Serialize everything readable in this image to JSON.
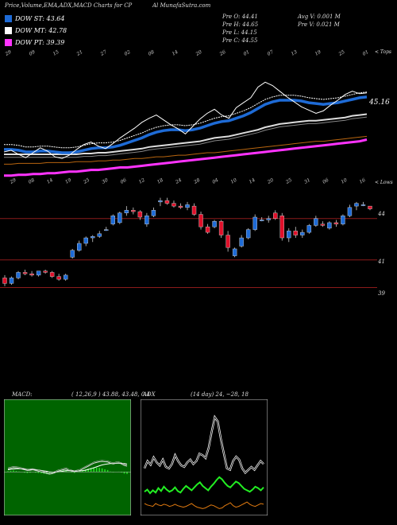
{
  "header": {
    "title": "Price,Volume,EMA,ADX,MACD Charts for CP",
    "site": "Al MunafaSutra.com"
  },
  "legend": [
    {
      "label": "DOW ST: 43.64",
      "color": "#1e6bd6"
    },
    {
      "label": "DOW MT: 42.78",
      "color": "#ffffff"
    },
    {
      "label": "DOW PT: 39.39",
      "color": "#ff33ff"
    }
  ],
  "stats": {
    "open": "Pre  O: 44.41",
    "high": "Pre  H: 44.65",
    "low": "Pre  L: 44.15",
    "close": "Pre  C: 44.55",
    "avg_vol": "Avg V: 0.001 M",
    "pre_vol": "Pre  V: 0.021 M"
  },
  "top_panel": {
    "right_label": "< Tops",
    "last_value_label": "45.16",
    "date_labels": [
      "29",
      "09",
      "15",
      "21",
      "27",
      "02",
      "08",
      "14",
      "20",
      "26",
      "01",
      "07",
      "13",
      "19",
      "25",
      "01"
    ],
    "bottom_labels": [
      "29",
      "08",
      "14",
      "19",
      "25",
      "30",
      "06",
      "12",
      "18",
      "24",
      "28",
      "04",
      "10",
      "14",
      "20",
      "25",
      "31",
      "06",
      "10",
      "16"
    ]
  },
  "candle_panel": {
    "right_label": "< Lows",
    "price_levels": [
      {
        "label": "44",
        "value": 44.0
      },
      {
        "label": "41",
        "value": 41.0
      },
      {
        "label": "39",
        "value": 39.0
      }
    ]
  },
  "macd": {
    "label": "MACD:",
    "params": "( 12,26,9 ) 43.88, 43.48, 0.4"
  },
  "adx": {
    "label": "ADX",
    "params": "(14 day) 24, ~28, 18"
  },
  "chart_data": {
    "type": "line",
    "price_ema": {
      "price": [
        37.9,
        38.1,
        37.6,
        37.2,
        37.8,
        38.4,
        38.0,
        37.3,
        37.1,
        37.5,
        38.2,
        38.8,
        39.1,
        38.6,
        38.3,
        38.9,
        39.6,
        40.2,
        40.8,
        41.5,
        42.0,
        42.4,
        41.8,
        41.2,
        40.7,
        40.1,
        41.0,
        41.9,
        42.6,
        43.1,
        42.4,
        42.0,
        43.3,
        43.9,
        44.5,
        45.8,
        46.4,
        46.0,
        45.3,
        44.6,
        44.0,
        43.4,
        43.0,
        42.6,
        42.9,
        43.6,
        44.2,
        44.9,
        45.3,
        45.0,
        45.1
      ],
      "ema_short": [
        38.2,
        38.2,
        38.1,
        37.9,
        37.9,
        38.0,
        38.0,
        37.9,
        37.8,
        37.8,
        37.9,
        38.1,
        38.3,
        38.4,
        38.4,
        38.5,
        38.7,
        39.0,
        39.3,
        39.6,
        40.0,
        40.3,
        40.5,
        40.6,
        40.6,
        40.5,
        40.6,
        40.8,
        41.1,
        41.4,
        41.6,
        41.7,
        42.0,
        42.3,
        42.7,
        43.2,
        43.7,
        44.0,
        44.2,
        44.2,
        44.2,
        44.1,
        43.9,
        43.8,
        43.7,
        43.8,
        43.9,
        44.1,
        44.3,
        44.5,
        44.6
      ],
      "ema_mid": [
        37.6,
        37.6,
        37.6,
        37.6,
        37.6,
        37.6,
        37.6,
        37.6,
        37.6,
        37.6,
        37.6,
        37.7,
        37.7,
        37.8,
        37.8,
        37.9,
        38.0,
        38.1,
        38.2,
        38.3,
        38.5,
        38.6,
        38.7,
        38.8,
        38.9,
        39.0,
        39.1,
        39.2,
        39.4,
        39.6,
        39.7,
        39.8,
        40.0,
        40.2,
        40.4,
        40.6,
        40.9,
        41.1,
        41.3,
        41.4,
        41.5,
        41.6,
        41.7,
        41.7,
        41.8,
        41.9,
        42.0,
        42.1,
        42.3,
        42.4,
        42.5
      ],
      "ema_long": [
        36.4,
        36.4,
        36.5,
        36.5,
        36.5,
        36.5,
        36.6,
        36.6,
        36.6,
        36.6,
        36.7,
        36.7,
        36.7,
        36.8,
        36.8,
        36.9,
        36.9,
        37.0,
        37.1,
        37.1,
        37.2,
        37.3,
        37.3,
        37.4,
        37.5,
        37.5,
        37.6,
        37.7,
        37.8,
        37.8,
        37.9,
        38.0,
        38.1,
        38.2,
        38.3,
        38.4,
        38.5,
        38.6,
        38.7,
        38.8,
        38.9,
        39.0,
        39.1,
        39.2,
        39.2,
        39.3,
        39.4,
        39.5,
        39.6,
        39.7,
        39.8
      ],
      "ema_pt": [
        35.0,
        35.0,
        35.1,
        35.1,
        35.2,
        35.2,
        35.3,
        35.3,
        35.4,
        35.5,
        35.5,
        35.6,
        35.7,
        35.7,
        35.8,
        35.9,
        36.0,
        36.0,
        36.1,
        36.2,
        36.3,
        36.4,
        36.5,
        36.6,
        36.7,
        36.8,
        36.9,
        37.0,
        37.1,
        37.2,
        37.3,
        37.4,
        37.5,
        37.6,
        37.7,
        37.8,
        37.9,
        38.0,
        38.1,
        38.2,
        38.3,
        38.4,
        38.5,
        38.6,
        38.7,
        38.8,
        38.9,
        39.0,
        39.1,
        39.2,
        39.4
      ]
    },
    "candles": [
      {
        "o": 39.7,
        "h": 39.9,
        "l": 39.1,
        "c": 39.3
      },
      {
        "o": 39.3,
        "h": 39.8,
        "l": 39.2,
        "c": 39.7
      },
      {
        "o": 39.7,
        "h": 40.2,
        "l": 39.6,
        "c": 40.1
      },
      {
        "o": 40.1,
        "h": 40.3,
        "l": 39.9,
        "c": 40.0
      },
      {
        "o": 40.0,
        "h": 40.2,
        "l": 39.8,
        "c": 39.9
      },
      {
        "o": 39.9,
        "h": 40.2,
        "l": 39.8,
        "c": 40.2
      },
      {
        "o": 40.2,
        "h": 40.3,
        "l": 40.0,
        "c": 40.1
      },
      {
        "o": 40.1,
        "h": 40.2,
        "l": 39.7,
        "c": 39.8
      },
      {
        "o": 39.8,
        "h": 40.0,
        "l": 39.5,
        "c": 39.6
      },
      {
        "o": 39.6,
        "h": 40.0,
        "l": 39.5,
        "c": 39.9
      },
      {
        "o": 41.2,
        "h": 41.8,
        "l": 41.1,
        "c": 41.7
      },
      {
        "o": 41.7,
        "h": 42.4,
        "l": 41.6,
        "c": 42.2
      },
      {
        "o": 42.2,
        "h": 42.7,
        "l": 42.0,
        "c": 42.6
      },
      {
        "o": 42.6,
        "h": 42.8,
        "l": 42.3,
        "c": 42.7
      },
      {
        "o": 42.7,
        "h": 43.1,
        "l": 42.6,
        "c": 42.9
      },
      {
        "o": 43.2,
        "h": 43.4,
        "l": 43.1,
        "c": 43.2
      },
      {
        "o": 43.6,
        "h": 44.3,
        "l": 43.5,
        "c": 44.2
      },
      {
        "o": 43.7,
        "h": 44.5,
        "l": 43.6,
        "c": 44.4
      },
      {
        "o": 44.4,
        "h": 44.9,
        "l": 44.2,
        "c": 44.6
      },
      {
        "o": 44.6,
        "h": 44.8,
        "l": 44.3,
        "c": 44.5
      },
      {
        "o": 44.5,
        "h": 44.6,
        "l": 43.9,
        "c": 44.1
      },
      {
        "o": 43.6,
        "h": 44.4,
        "l": 43.4,
        "c": 44.2
      },
      {
        "o": 44.2,
        "h": 44.8,
        "l": 44.1,
        "c": 44.6
      },
      {
        "o": 45.2,
        "h": 45.5,
        "l": 44.9,
        "c": 45.3
      },
      {
        "o": 45.3,
        "h": 45.5,
        "l": 45.0,
        "c": 45.1
      },
      {
        "o": 45.1,
        "h": 45.3,
        "l": 44.8,
        "c": 44.9
      },
      {
        "o": 44.9,
        "h": 45.1,
        "l": 44.7,
        "c": 44.8
      },
      {
        "o": 44.8,
        "h": 45.2,
        "l": 44.6,
        "c": 45.0
      },
      {
        "o": 44.9,
        "h": 45.1,
        "l": 44.2,
        "c": 44.3
      },
      {
        "o": 44.3,
        "h": 44.5,
        "l": 43.2,
        "c": 43.4
      },
      {
        "o": 43.4,
        "h": 43.6,
        "l": 42.9,
        "c": 43.0
      },
      {
        "o": 43.4,
        "h": 43.9,
        "l": 43.3,
        "c": 43.8
      },
      {
        "o": 43.8,
        "h": 43.9,
        "l": 42.6,
        "c": 42.8
      },
      {
        "o": 42.8,
        "h": 43.1,
        "l": 41.6,
        "c": 41.9
      },
      {
        "o": 41.3,
        "h": 41.9,
        "l": 41.2,
        "c": 41.8
      },
      {
        "o": 42.0,
        "h": 42.8,
        "l": 41.9,
        "c": 42.6
      },
      {
        "o": 42.6,
        "h": 43.3,
        "l": 42.5,
        "c": 43.2
      },
      {
        "o": 43.2,
        "h": 44.3,
        "l": 43.1,
        "c": 44.1
      },
      {
        "o": 43.9,
        "h": 44.1,
        "l": 43.8,
        "c": 43.9
      },
      {
        "o": 43.9,
        "h": 44.2,
        "l": 43.7,
        "c": 44.0
      },
      {
        "o": 44.4,
        "h": 44.6,
        "l": 43.9,
        "c": 44.0
      },
      {
        "o": 44.2,
        "h": 44.4,
        "l": 42.4,
        "c": 42.6
      },
      {
        "o": 42.6,
        "h": 43.3,
        "l": 42.3,
        "c": 43.1
      },
      {
        "o": 43.1,
        "h": 43.4,
        "l": 42.6,
        "c": 42.8
      },
      {
        "o": 42.8,
        "h": 43.2,
        "l": 42.6,
        "c": 43.0
      },
      {
        "o": 43.0,
        "h": 43.6,
        "l": 42.9,
        "c": 43.5
      },
      {
        "o": 43.5,
        "h": 44.2,
        "l": 43.4,
        "c": 44.0
      },
      {
        "o": 43.6,
        "h": 43.8,
        "l": 43.4,
        "c": 43.5
      },
      {
        "o": 43.3,
        "h": 43.8,
        "l": 43.2,
        "c": 43.7
      },
      {
        "o": 43.7,
        "h": 43.9,
        "l": 43.4,
        "c": 43.6
      },
      {
        "o": 43.6,
        "h": 44.3,
        "l": 43.5,
        "c": 44.2
      },
      {
        "o": 44.2,
        "h": 45.0,
        "l": 44.1,
        "c": 44.8
      },
      {
        "o": 44.9,
        "h": 45.2,
        "l": 44.6,
        "c": 45.1
      },
      {
        "o": 45.0,
        "h": 45.2,
        "l": 44.9,
        "c": 45.0
      },
      {
        "o": 44.9,
        "h": 44.9,
        "l": 44.6,
        "c": 44.7
      }
    ],
    "macd_panel": {
      "macd": [
        0.2,
        0.25,
        0.3,
        0.28,
        0.25,
        0.2,
        0.15,
        0.1,
        0.12,
        0.15,
        0.1,
        0.05,
        0.0,
        -0.05,
        -0.1,
        -0.15,
        -0.12,
        -0.05,
        0.05,
        0.1,
        0.15,
        0.2,
        0.1,
        0.05,
        0.0,
        0.05,
        0.1,
        0.2,
        0.3,
        0.4,
        0.5,
        0.6,
        0.65,
        0.7,
        0.72,
        0.7,
        0.68,
        0.6,
        0.55,
        0.6,
        0.62,
        0.55,
        0.45,
        0.4
      ],
      "signal": [
        0.15,
        0.18,
        0.2,
        0.22,
        0.22,
        0.21,
        0.2,
        0.18,
        0.17,
        0.16,
        0.15,
        0.13,
        0.1,
        0.07,
        0.04,
        0.0,
        -0.02,
        -0.02,
        0.0,
        0.02,
        0.05,
        0.08,
        0.09,
        0.08,
        0.07,
        0.06,
        0.07,
        0.09,
        0.12,
        0.17,
        0.22,
        0.28,
        0.35,
        0.42,
        0.48,
        0.52,
        0.55,
        0.57,
        0.58,
        0.59,
        0.6,
        0.59,
        0.57,
        0.54
      ],
      "ylim": [
        -3,
        5
      ]
    },
    "adx_panel": {
      "di_plus": [
        28,
        31,
        26,
        30,
        27,
        33,
        29,
        35,
        31,
        28,
        30,
        34,
        29,
        27,
        32,
        36,
        33,
        30,
        34,
        38,
        41,
        36,
        33,
        30,
        35,
        39,
        44,
        48,
        45,
        40,
        36,
        34,
        38,
        42,
        40,
        36,
        32,
        30,
        28,
        31,
        35,
        33,
        30,
        34
      ],
      "di_minus": [
        12,
        10,
        9,
        8,
        12,
        10,
        9,
        11,
        10,
        8,
        9,
        11,
        9,
        8,
        7,
        8,
        10,
        12,
        9,
        7,
        6,
        5,
        6,
        8,
        10,
        9,
        7,
        5,
        6,
        9,
        11,
        13,
        9,
        7,
        8,
        10,
        12,
        14,
        11,
        9,
        8,
        10,
        12,
        11
      ],
      "adx": [
        60,
        70,
        65,
        75,
        68,
        64,
        72,
        62,
        60,
        66,
        78,
        70,
        64,
        62,
        68,
        72,
        66,
        70,
        80,
        78,
        74,
        88,
        110,
        130,
        124,
        100,
        80,
        60,
        58,
        70,
        76,
        72,
        60,
        54,
        58,
        62,
        58,
        64,
        70,
        66
      ],
      "ylim": [
        0,
        150
      ]
    }
  }
}
